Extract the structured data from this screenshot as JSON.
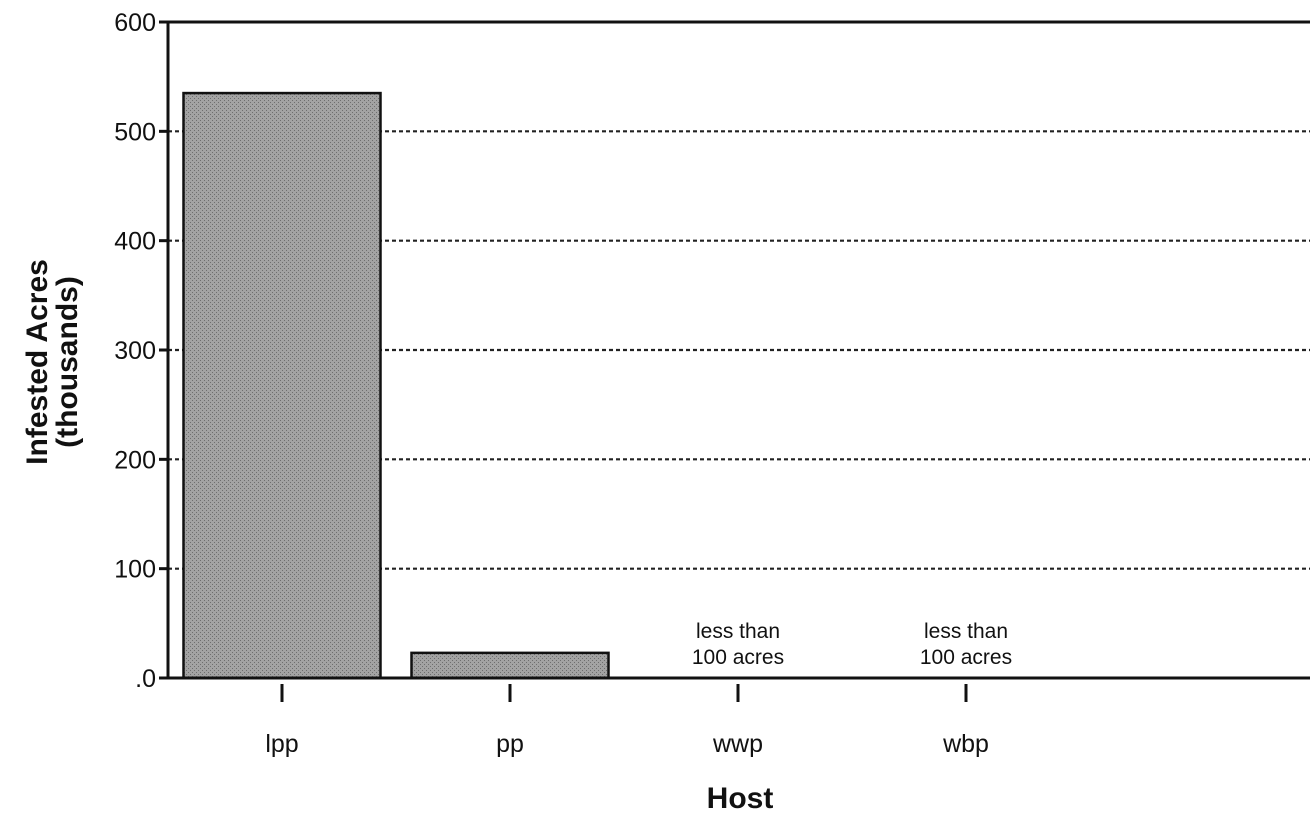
{
  "chart_data": {
    "type": "bar",
    "xlabel": "Host",
    "ylabel_line1": "Infested Acres",
    "ylabel_line2": "(thousands)",
    "categories": [
      "lpp",
      "pp",
      "wwp",
      "wbp"
    ],
    "values": [
      535,
      23,
      0,
      0
    ],
    "ylim": [
      0,
      600
    ],
    "yticks": [
      0,
      100,
      200,
      300,
      400,
      500,
      600
    ],
    "ytick_labels": [
      ".0",
      "100",
      "200",
      "300",
      "400",
      "500",
      "600"
    ],
    "grid": "horizontal dotted",
    "annotations": [
      {
        "category": "wwp",
        "line1": "less than",
        "line2": "100 acres"
      },
      {
        "category": "wbp",
        "line1": "less than",
        "line2": "100 acres"
      }
    ],
    "colors": {
      "bar_fill": "#9c9c9c",
      "bar_stroke": "#111111",
      "grid": "#222222"
    }
  }
}
